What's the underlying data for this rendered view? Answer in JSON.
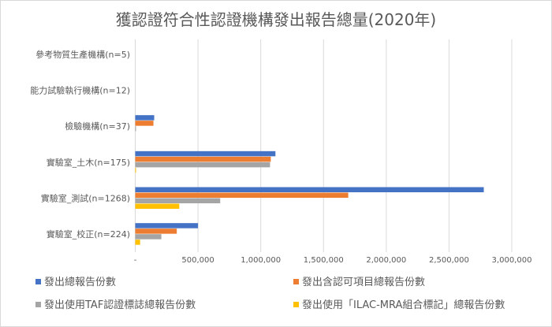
{
  "chart_data": {
    "type": "bar",
    "orientation": "horizontal",
    "title": "獲認證符合性認證機構發出報告總量(2020年)",
    "categories": [
      "參考物質生產機構(n=5)",
      "能力試驗執行機構(n=12)",
      "檢驗機構(n=37)",
      "實驗室_土木(n=175)",
      "實驗室_測試(n=1268)",
      "實驗室_校正(n=224)"
    ],
    "series": [
      {
        "name": "發出總報告份數",
        "color": "#4472c4",
        "values": [
          0,
          0,
          151000,
          1117000,
          2777000,
          500000
        ]
      },
      {
        "name": "發出含認可項目總報告份數",
        "color": "#ed7d31",
        "values": [
          0,
          0,
          145000,
          1080000,
          1697000,
          331000
        ]
      },
      {
        "name": "發出使用TAF認證標誌總報告份數",
        "color": "#a5a5a5",
        "values": [
          0,
          0,
          6000,
          1074000,
          677000,
          208000
        ]
      },
      {
        "name": "發出使用「ILAC-MRA組合標記」總報告份數",
        "color": "#ffc000",
        "values": [
          0,
          0,
          0,
          6000,
          351000,
          39000
        ]
      }
    ],
    "xlim": [
      0,
      3000000
    ],
    "xticks": [
      "-",
      "500,000",
      "1,000,000",
      "1,500,000",
      "2,000,000",
      "2,500,000",
      "3,000,000"
    ],
    "grid": true,
    "legend_position": "bottom"
  }
}
